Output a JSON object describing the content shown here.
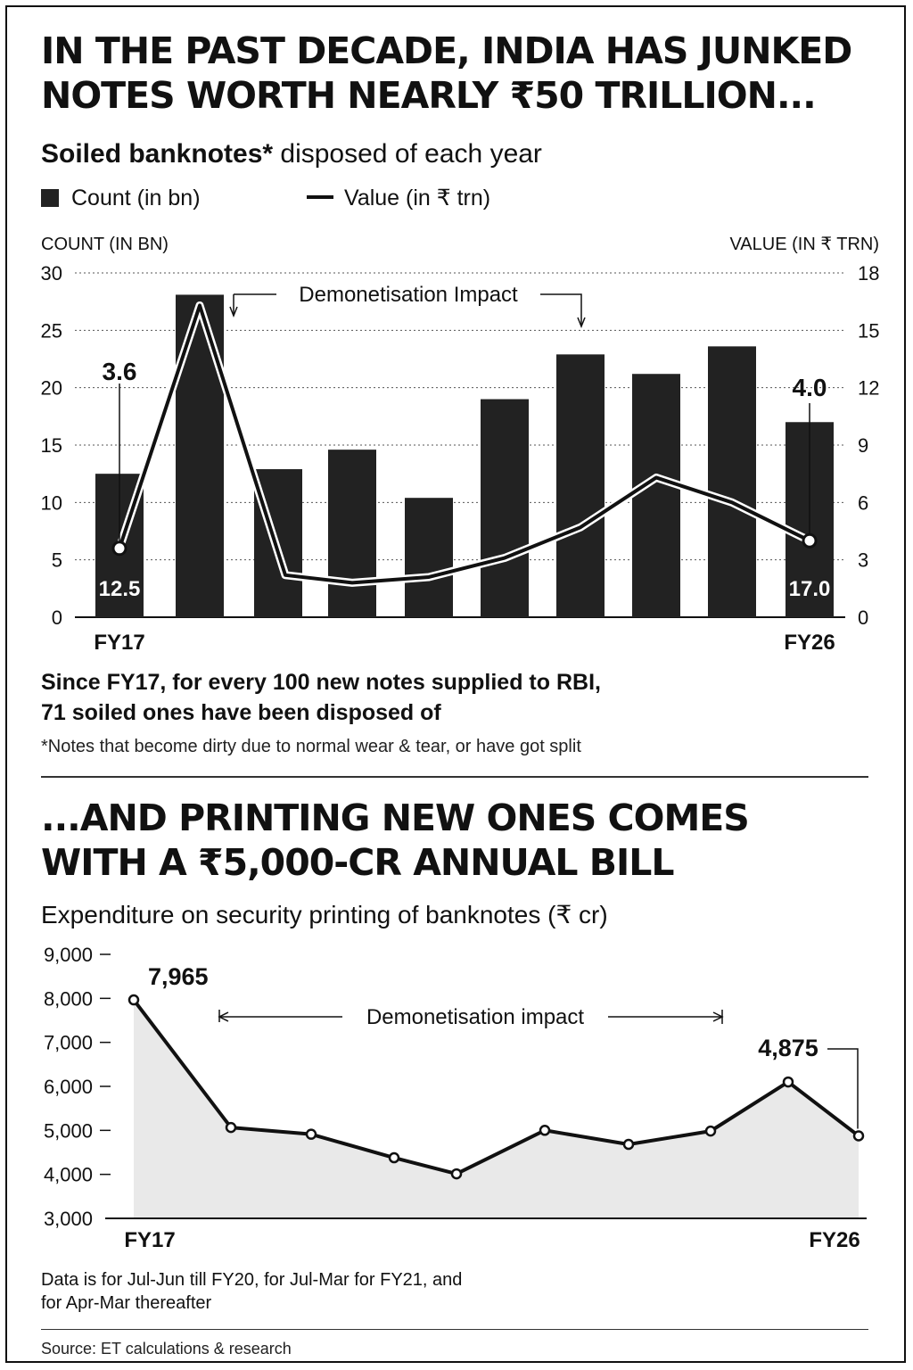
{
  "headline1": [
    "IN THE PAST DECADE, INDIA HAS JUNKED",
    "NOTES WORTH NEARLY ₹50 TRILLION..."
  ],
  "subtitle1": {
    "bold": "Soiled banknotes*",
    "rest": " disposed of each year"
  },
  "legend": {
    "count": "Count (in bn)",
    "value": "Value (in ₹ trn)"
  },
  "takeaway": [
    "Since FY17, for every 100 new notes supplied to RBI,",
    "71 soiled ones have been disposed of"
  ],
  "footnote": "*Notes that become dirty due to normal wear & tear, or have got split",
  "headline2": [
    "...AND PRINTING NEW ONES COMES",
    "WITH A ₹5,000-CR ANNUAL BILL"
  ],
  "subtitle2": "Expenditure on security printing of banknotes (₹ cr)",
  "note": [
    "Data is for Jul-Jun till FY20, for Jul-Mar for FY21, and",
    "for Apr-Mar thereafter"
  ],
  "source": "Source: ET calculations & research",
  "colors": {
    "bar": "#222222",
    "line": "#111111",
    "area": "#e9e9e9",
    "grid": "#555555"
  },
  "chart_data": [
    {
      "type": "bar",
      "title": "Soiled banknotes* disposed of each year",
      "categories": [
        "FY17",
        "",
        "",
        "",
        "",
        "",
        "",
        "",
        "",
        "FY26"
      ],
      "ylabel": "COUNT (IN BN)",
      "y2label": "VALUE (IN ₹ TRN)",
      "ylim": [
        0,
        30
      ],
      "y2lim": [
        0,
        18
      ],
      "yticks": [
        "0",
        "5",
        "10",
        "15",
        "20",
        "25",
        "30"
      ],
      "y2ticks": [
        "0",
        "3",
        "6",
        "9",
        "12",
        "15",
        "18"
      ],
      "grid": true,
      "series": [
        {
          "name": "Count (in bn)",
          "type": "bar",
          "axis": "left",
          "values": [
            12.5,
            28.1,
            12.9,
            14.6,
            10.4,
            19,
            22.9,
            21.2,
            23.6,
            17.0
          ]
        },
        {
          "name": "Value (in ₹ trn)",
          "type": "line",
          "axis": "right",
          "values": [
            3.6,
            16.3,
            2.2,
            1.8,
            2.1,
            3.1,
            4.7,
            7.3,
            6.0,
            4.0
          ]
        }
      ],
      "data_labels": {
        "first_bar": "12.5",
        "last_bar": "17.0",
        "first_line": "3.6",
        "last_line": "4.0"
      },
      "annotation": "Demonetisation Impact"
    },
    {
      "type": "area",
      "title": "Expenditure on security printing of banknotes (₹ cr)",
      "categories": [
        "FY17",
        "",
        "",
        "",
        "",
        "",
        "",
        "",
        "",
        "FY26"
      ],
      "ylim": [
        3000,
        9000
      ],
      "yticks": [
        "3,000",
        "4,000",
        "5,000",
        "6,000",
        "7,000",
        "8,000",
        "9,000"
      ],
      "grid": false,
      "series": [
        {
          "values": [
            7965,
            5065,
            4912,
            4378,
            4012,
            5001,
            4682,
            4984,
            6100,
            4875
          ]
        }
      ],
      "data_labels": {
        "first": "7,965",
        "last": "4,875"
      },
      "annotation": "Demonetisation impact"
    }
  ]
}
